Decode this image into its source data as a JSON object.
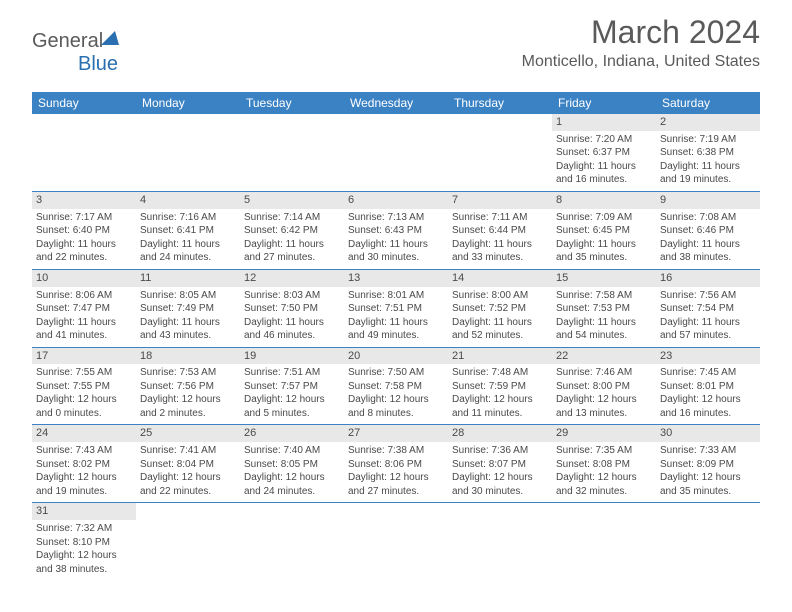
{
  "logo": {
    "part1": "General",
    "part2": "Blue"
  },
  "title": "March 2024",
  "location": "Monticello, Indiana, United States",
  "colors": {
    "header_bg": "#3b82c4",
    "header_text": "#ffffff",
    "daynum_bg": "#e8e8e8",
    "text": "#4a4a4a",
    "rule": "#3b82c4"
  },
  "weekdays": [
    "Sunday",
    "Monday",
    "Tuesday",
    "Wednesday",
    "Thursday",
    "Friday",
    "Saturday"
  ],
  "weeks": [
    [
      {
        "num": "",
        "sunrise": "",
        "sunset": "",
        "daylight": ""
      },
      {
        "num": "",
        "sunrise": "",
        "sunset": "",
        "daylight": ""
      },
      {
        "num": "",
        "sunrise": "",
        "sunset": "",
        "daylight": ""
      },
      {
        "num": "",
        "sunrise": "",
        "sunset": "",
        "daylight": ""
      },
      {
        "num": "",
        "sunrise": "",
        "sunset": "",
        "daylight": ""
      },
      {
        "num": "1",
        "sunrise": "Sunrise: 7:20 AM",
        "sunset": "Sunset: 6:37 PM",
        "daylight": "Daylight: 11 hours and 16 minutes."
      },
      {
        "num": "2",
        "sunrise": "Sunrise: 7:19 AM",
        "sunset": "Sunset: 6:38 PM",
        "daylight": "Daylight: 11 hours and 19 minutes."
      }
    ],
    [
      {
        "num": "3",
        "sunrise": "Sunrise: 7:17 AM",
        "sunset": "Sunset: 6:40 PM",
        "daylight": "Daylight: 11 hours and 22 minutes."
      },
      {
        "num": "4",
        "sunrise": "Sunrise: 7:16 AM",
        "sunset": "Sunset: 6:41 PM",
        "daylight": "Daylight: 11 hours and 24 minutes."
      },
      {
        "num": "5",
        "sunrise": "Sunrise: 7:14 AM",
        "sunset": "Sunset: 6:42 PM",
        "daylight": "Daylight: 11 hours and 27 minutes."
      },
      {
        "num": "6",
        "sunrise": "Sunrise: 7:13 AM",
        "sunset": "Sunset: 6:43 PM",
        "daylight": "Daylight: 11 hours and 30 minutes."
      },
      {
        "num": "7",
        "sunrise": "Sunrise: 7:11 AM",
        "sunset": "Sunset: 6:44 PM",
        "daylight": "Daylight: 11 hours and 33 minutes."
      },
      {
        "num": "8",
        "sunrise": "Sunrise: 7:09 AM",
        "sunset": "Sunset: 6:45 PM",
        "daylight": "Daylight: 11 hours and 35 minutes."
      },
      {
        "num": "9",
        "sunrise": "Sunrise: 7:08 AM",
        "sunset": "Sunset: 6:46 PM",
        "daylight": "Daylight: 11 hours and 38 minutes."
      }
    ],
    [
      {
        "num": "10",
        "sunrise": "Sunrise: 8:06 AM",
        "sunset": "Sunset: 7:47 PM",
        "daylight": "Daylight: 11 hours and 41 minutes."
      },
      {
        "num": "11",
        "sunrise": "Sunrise: 8:05 AM",
        "sunset": "Sunset: 7:49 PM",
        "daylight": "Daylight: 11 hours and 43 minutes."
      },
      {
        "num": "12",
        "sunrise": "Sunrise: 8:03 AM",
        "sunset": "Sunset: 7:50 PM",
        "daylight": "Daylight: 11 hours and 46 minutes."
      },
      {
        "num": "13",
        "sunrise": "Sunrise: 8:01 AM",
        "sunset": "Sunset: 7:51 PM",
        "daylight": "Daylight: 11 hours and 49 minutes."
      },
      {
        "num": "14",
        "sunrise": "Sunrise: 8:00 AM",
        "sunset": "Sunset: 7:52 PM",
        "daylight": "Daylight: 11 hours and 52 minutes."
      },
      {
        "num": "15",
        "sunrise": "Sunrise: 7:58 AM",
        "sunset": "Sunset: 7:53 PM",
        "daylight": "Daylight: 11 hours and 54 minutes."
      },
      {
        "num": "16",
        "sunrise": "Sunrise: 7:56 AM",
        "sunset": "Sunset: 7:54 PM",
        "daylight": "Daylight: 11 hours and 57 minutes."
      }
    ],
    [
      {
        "num": "17",
        "sunrise": "Sunrise: 7:55 AM",
        "sunset": "Sunset: 7:55 PM",
        "daylight": "Daylight: 12 hours and 0 minutes."
      },
      {
        "num": "18",
        "sunrise": "Sunrise: 7:53 AM",
        "sunset": "Sunset: 7:56 PM",
        "daylight": "Daylight: 12 hours and 2 minutes."
      },
      {
        "num": "19",
        "sunrise": "Sunrise: 7:51 AM",
        "sunset": "Sunset: 7:57 PM",
        "daylight": "Daylight: 12 hours and 5 minutes."
      },
      {
        "num": "20",
        "sunrise": "Sunrise: 7:50 AM",
        "sunset": "Sunset: 7:58 PM",
        "daylight": "Daylight: 12 hours and 8 minutes."
      },
      {
        "num": "21",
        "sunrise": "Sunrise: 7:48 AM",
        "sunset": "Sunset: 7:59 PM",
        "daylight": "Daylight: 12 hours and 11 minutes."
      },
      {
        "num": "22",
        "sunrise": "Sunrise: 7:46 AM",
        "sunset": "Sunset: 8:00 PM",
        "daylight": "Daylight: 12 hours and 13 minutes."
      },
      {
        "num": "23",
        "sunrise": "Sunrise: 7:45 AM",
        "sunset": "Sunset: 8:01 PM",
        "daylight": "Daylight: 12 hours and 16 minutes."
      }
    ],
    [
      {
        "num": "24",
        "sunrise": "Sunrise: 7:43 AM",
        "sunset": "Sunset: 8:02 PM",
        "daylight": "Daylight: 12 hours and 19 minutes."
      },
      {
        "num": "25",
        "sunrise": "Sunrise: 7:41 AM",
        "sunset": "Sunset: 8:04 PM",
        "daylight": "Daylight: 12 hours and 22 minutes."
      },
      {
        "num": "26",
        "sunrise": "Sunrise: 7:40 AM",
        "sunset": "Sunset: 8:05 PM",
        "daylight": "Daylight: 12 hours and 24 minutes."
      },
      {
        "num": "27",
        "sunrise": "Sunrise: 7:38 AM",
        "sunset": "Sunset: 8:06 PM",
        "daylight": "Daylight: 12 hours and 27 minutes."
      },
      {
        "num": "28",
        "sunrise": "Sunrise: 7:36 AM",
        "sunset": "Sunset: 8:07 PM",
        "daylight": "Daylight: 12 hours and 30 minutes."
      },
      {
        "num": "29",
        "sunrise": "Sunrise: 7:35 AM",
        "sunset": "Sunset: 8:08 PM",
        "daylight": "Daylight: 12 hours and 32 minutes."
      },
      {
        "num": "30",
        "sunrise": "Sunrise: 7:33 AM",
        "sunset": "Sunset: 8:09 PM",
        "daylight": "Daylight: 12 hours and 35 minutes."
      }
    ],
    [
      {
        "num": "31",
        "sunrise": "Sunrise: 7:32 AM",
        "sunset": "Sunset: 8:10 PM",
        "daylight": "Daylight: 12 hours and 38 minutes."
      },
      {
        "num": "",
        "sunrise": "",
        "sunset": "",
        "daylight": ""
      },
      {
        "num": "",
        "sunrise": "",
        "sunset": "",
        "daylight": ""
      },
      {
        "num": "",
        "sunrise": "",
        "sunset": "",
        "daylight": ""
      },
      {
        "num": "",
        "sunrise": "",
        "sunset": "",
        "daylight": ""
      },
      {
        "num": "",
        "sunrise": "",
        "sunset": "",
        "daylight": ""
      },
      {
        "num": "",
        "sunrise": "",
        "sunset": "",
        "daylight": ""
      }
    ]
  ]
}
